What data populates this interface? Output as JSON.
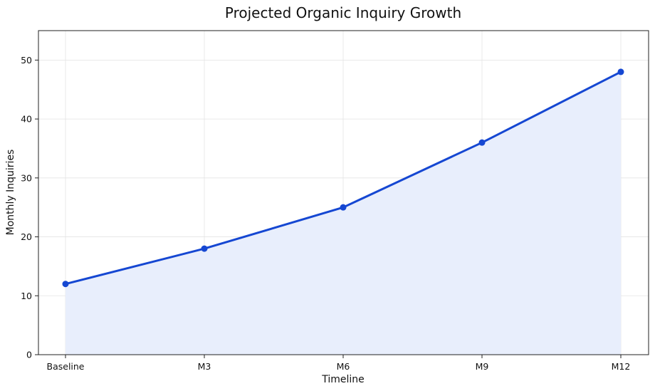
{
  "chart_data": {
    "type": "line",
    "title": "Projected Organic Inquiry Growth",
    "xlabel": "Timeline",
    "ylabel": "Monthly Inquiries",
    "categories": [
      "Baseline",
      "M3",
      "M6",
      "M9",
      "M12"
    ],
    "series": [
      {
        "values": [
          12,
          18,
          25,
          36,
          48
        ],
        "color": "#1547d2",
        "fill_color": "#e8eefc"
      }
    ],
    "ylim": [
      0,
      55
    ],
    "yticks": [
      "0",
      "10",
      "20",
      "30",
      "40",
      "50"
    ],
    "grid": true,
    "area_fill": true,
    "markers": "circle"
  }
}
